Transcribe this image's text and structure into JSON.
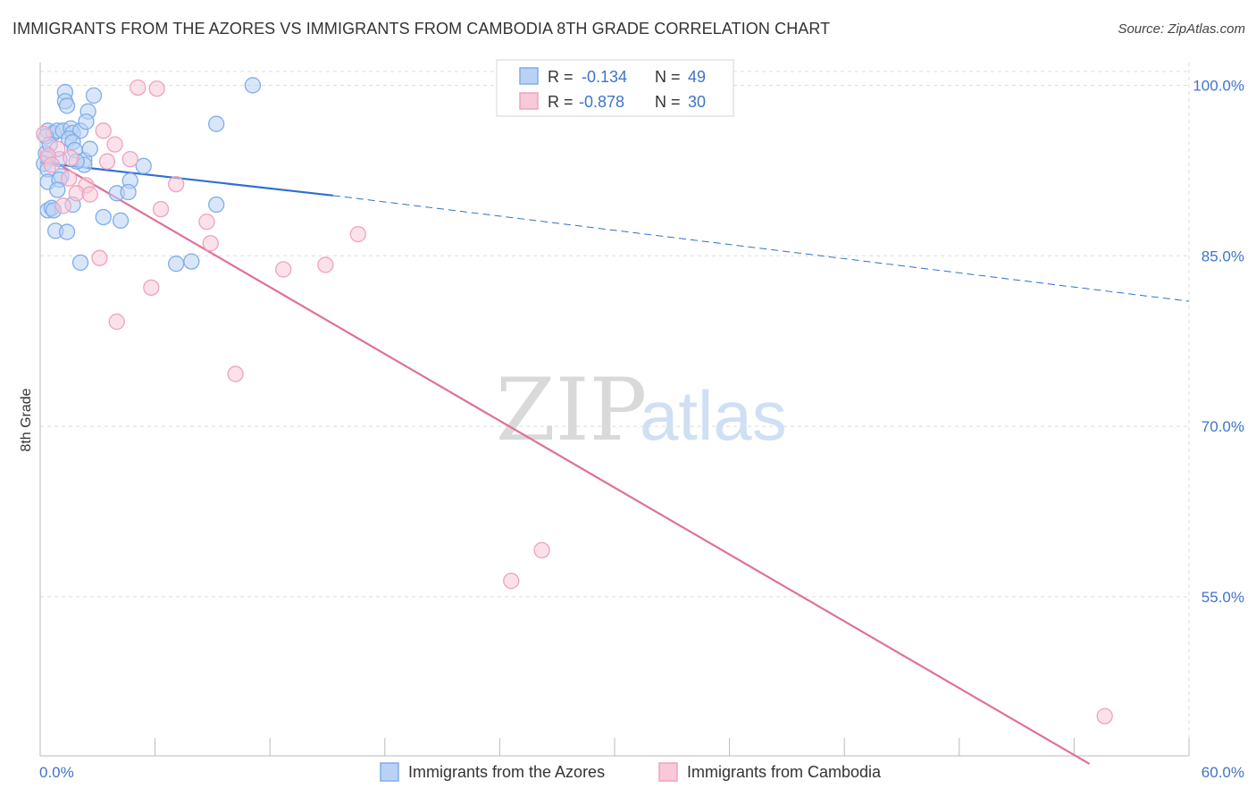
{
  "header": {
    "title": "IMMIGRANTS FROM THE AZORES VS IMMIGRANTS FROM CAMBODIA 8TH GRADE CORRELATION CHART",
    "source": "Source: ZipAtlas.com"
  },
  "watermark": {
    "zip": "ZIP",
    "atlas": "atlas"
  },
  "colors": {
    "azores": "#7fadea",
    "azores_fill": "#b9d2f4",
    "azores_line": "#2f6fd1",
    "cambodia": "#f0a2bd",
    "cambodia_fill": "#f8c9d8",
    "cambodia_line": "#e0709a",
    "value_text": "#3f74c9",
    "axis_text": "#333333",
    "grid": "#dddddd"
  },
  "chart_data": {
    "type": "scatter",
    "title": "IMMIGRANTS FROM THE AZORES VS IMMIGRANTS FROM CAMBODIA 8TH GRADE CORRELATION CHART",
    "xlabel": "",
    "ylabel": "8th Grade",
    "xlim": [
      0,
      60
    ],
    "ylim": [
      41,
      102
    ],
    "x_tick_labels": [
      "0.0%",
      "60.0%"
    ],
    "y_ticks": [
      55,
      70,
      85,
      100
    ],
    "y_tick_labels": [
      "55.0%",
      "70.0%",
      "85.0%",
      "100.0%"
    ],
    "grid": true,
    "legend_position": "bottom",
    "stats_position": "top-center",
    "series": [
      {
        "name": "Immigrants from the Azores",
        "r_label": "R =",
        "r_value": "-0.134",
        "n_label": "N =",
        "n_value": "49",
        "trend": {
          "x0": 0,
          "y0": 93.2,
          "x1": 15.3,
          "y1": 90.3,
          "dash_x1": 60,
          "dash_y1": 81.0
        },
        "points": [
          [
            1.3,
            99.4
          ],
          [
            1.3,
            98.6
          ],
          [
            1.4,
            98.2
          ],
          [
            2.8,
            99.1
          ],
          [
            2.5,
            97.7
          ],
          [
            11.1,
            100.0
          ],
          [
            0.4,
            96.0
          ],
          [
            0.7,
            95.8
          ],
          [
            0.9,
            96.0
          ],
          [
            1.2,
            96.0
          ],
          [
            1.6,
            96.2
          ],
          [
            1.7,
            95.8
          ],
          [
            2.1,
            96.0
          ],
          [
            2.4,
            96.8
          ],
          [
            9.2,
            96.6
          ],
          [
            0.3,
            95.5
          ],
          [
            1.5,
            95.3
          ],
          [
            1.7,
            95.0
          ],
          [
            0.3,
            94.0
          ],
          [
            0.4,
            93.6
          ],
          [
            1.0,
            93.5
          ],
          [
            1.8,
            94.3
          ],
          [
            2.3,
            93.4
          ],
          [
            2.6,
            94.4
          ],
          [
            5.4,
            92.9
          ],
          [
            0.2,
            93.1
          ],
          [
            0.4,
            92.6
          ],
          [
            1.1,
            92.0
          ],
          [
            2.3,
            93.0
          ],
          [
            0.4,
            91.5
          ],
          [
            1.0,
            91.7
          ],
          [
            4.7,
            91.6
          ],
          [
            0.9,
            90.8
          ],
          [
            4.0,
            90.5
          ],
          [
            4.6,
            90.6
          ],
          [
            0.4,
            89.0
          ],
          [
            0.6,
            89.2
          ],
          [
            0.7,
            89.0
          ],
          [
            1.7,
            89.5
          ],
          [
            9.2,
            89.5
          ],
          [
            3.3,
            88.4
          ],
          [
            4.2,
            88.1
          ],
          [
            0.8,
            87.2
          ],
          [
            1.4,
            87.1
          ],
          [
            2.1,
            84.4
          ],
          [
            7.1,
            84.3
          ],
          [
            7.9,
            84.5
          ],
          [
            0.5,
            94.8
          ],
          [
            1.9,
            93.3
          ]
        ]
      },
      {
        "name": "Immigrants from Cambodia",
        "r_label": "R =",
        "r_value": "-0.878",
        "n_label": "N =",
        "n_value": "30",
        "trend": {
          "x0": 0,
          "y0": 94.0,
          "x1": 54.8,
          "y1": 40.3
        },
        "points": [
          [
            5.1,
            99.8
          ],
          [
            6.1,
            99.7
          ],
          [
            0.2,
            95.7
          ],
          [
            3.3,
            96.0
          ],
          [
            3.9,
            94.8
          ],
          [
            0.9,
            94.4
          ],
          [
            0.4,
            93.8
          ],
          [
            1.6,
            93.6
          ],
          [
            3.5,
            93.3
          ],
          [
            4.7,
            93.5
          ],
          [
            7.1,
            91.3
          ],
          [
            2.4,
            91.2
          ],
          [
            1.9,
            90.5
          ],
          [
            2.6,
            90.4
          ],
          [
            1.2,
            89.4
          ],
          [
            6.3,
            89.1
          ],
          [
            8.7,
            88.0
          ],
          [
            16.6,
            86.9
          ],
          [
            8.9,
            86.1
          ],
          [
            3.1,
            84.8
          ],
          [
            12.7,
            83.8
          ],
          [
            14.9,
            84.2
          ],
          [
            5.8,
            82.2
          ],
          [
            4.0,
            79.2
          ],
          [
            10.2,
            74.6
          ],
          [
            26.2,
            59.1
          ],
          [
            24.6,
            56.4
          ],
          [
            55.6,
            44.5
          ],
          [
            1.5,
            91.8
          ],
          [
            0.6,
            93.0
          ]
        ]
      }
    ]
  }
}
